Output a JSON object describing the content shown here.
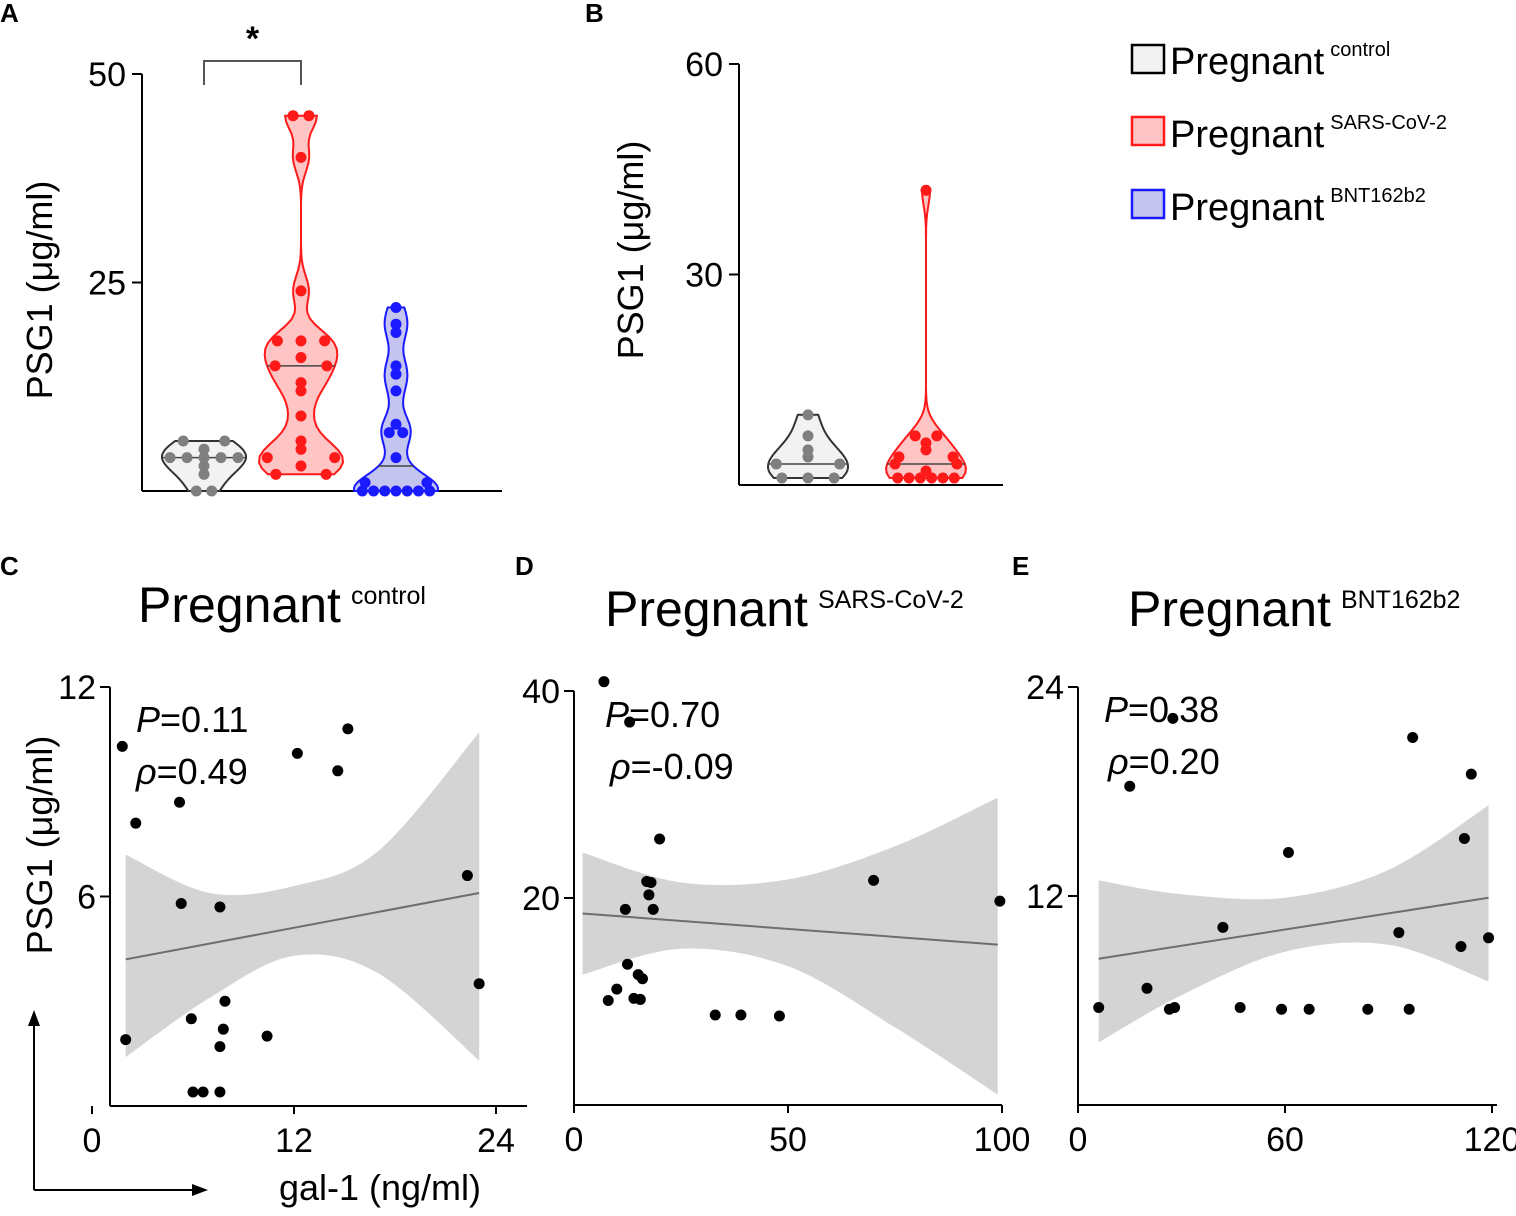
{
  "colors": {
    "control": "#7f7f7f",
    "sars": "#ff1a1a",
    "bnt": "#1a1aff",
    "control_fill": "#f2f2f2",
    "sars_fill": "#ffc4c4",
    "bnt_fill": "#c4c4f0",
    "band": "#d4d4d4",
    "fit": "#6e6e6e",
    "point": "#000000"
  },
  "legend": [
    {
      "key": "control",
      "label": "Pregnant",
      "sup": "control"
    },
    {
      "key": "sars",
      "label": "Pregnant",
      "sup": "SARS-CoV-2"
    },
    {
      "key": "bnt",
      "label": "Pregnant",
      "sup": "BNT162b2"
    }
  ],
  "shared_labels": {
    "psg1_ylabel": "PSG1 (μg/ml)",
    "gal1_xlabel": "gal-1 (ng/ml)"
  },
  "chart_data": [
    {
      "panel": "A",
      "type": "violin",
      "ylabel": "PSG1 (μg/ml)",
      "ylim": [
        0,
        50
      ],
      "yticks": [
        25,
        50
      ],
      "significance": {
        "groups": [
          "control",
          "sars"
        ],
        "label": "*"
      },
      "groups": [
        {
          "key": "control",
          "median": 4,
          "values": [
            0,
            0,
            2,
            3,
            4,
            4,
            4,
            4,
            4,
            5,
            6,
            6
          ]
        },
        {
          "key": "sars",
          "median": 15,
          "values": [
            2,
            2,
            3,
            4,
            4,
            5,
            6,
            9,
            12,
            13,
            15,
            15,
            16,
            18,
            18,
            18,
            24,
            40,
            45,
            45
          ]
        },
        {
          "key": "bnt",
          "median": 3,
          "values": [
            0,
            0,
            0,
            0,
            0,
            0,
            0,
            1,
            1,
            4,
            7,
            7,
            8,
            12,
            14,
            15,
            19,
            20,
            22
          ]
        }
      ]
    },
    {
      "panel": "B",
      "type": "violin",
      "ylabel": "PSG1 (μg/ml)",
      "ylim": [
        0,
        60
      ],
      "yticks": [
        30,
        60
      ],
      "groups": [
        {
          "key": "control",
          "median": 3,
          "values": [
            1,
            1,
            1,
            3,
            3,
            4,
            5,
            7,
            10
          ]
        },
        {
          "key": "sars",
          "median": 3,
          "values": [
            1,
            1,
            1,
            1,
            1,
            1,
            2,
            3,
            3,
            4,
            4,
            5,
            6,
            7,
            7,
            42
          ]
        }
      ]
    },
    {
      "panel": "C",
      "type": "scatter",
      "title": "Pregnant",
      "title_sup": "control",
      "p_label": "P",
      "p_value": "=0.11",
      "rho_label": "ρ",
      "rho_value": "=0.49",
      "ylabel": "PSG1 (μg/ml)",
      "xlabel": "gal-1 (ng/ml)",
      "xlim": [
        0,
        24
      ],
      "ylim": [
        0,
        12
      ],
      "xticks": [
        0,
        12,
        24
      ],
      "yticks": [
        6,
        12
      ],
      "fit": {
        "x": [
          2,
          23
        ],
        "y": [
          4.2,
          6.1
        ]
      },
      "band": {
        "x": [
          2,
          7,
          12,
          17,
          23
        ],
        "upper": [
          7.2,
          6.1,
          6.3,
          7.3,
          10.7
        ],
        "lower": [
          1.4,
          3.1,
          4.3,
          3.8,
          1.3
        ]
      },
      "points": [
        {
          "x": 1.8,
          "y": 10.3
        },
        {
          "x": 2.6,
          "y": 8.1
        },
        {
          "x": 5.2,
          "y": 8.7
        },
        {
          "x": 12.2,
          "y": 10.1
        },
        {
          "x": 14.6,
          "y": 9.6
        },
        {
          "x": 15.2,
          "y": 10.8
        },
        {
          "x": 22.3,
          "y": 6.6
        },
        {
          "x": 5.3,
          "y": 5.8
        },
        {
          "x": 7.6,
          "y": 5.7
        },
        {
          "x": 23.0,
          "y": 3.5
        },
        {
          "x": 7.9,
          "y": 3.0
        },
        {
          "x": 5.9,
          "y": 2.5
        },
        {
          "x": 2.0,
          "y": 1.9
        },
        {
          "x": 7.8,
          "y": 2.2
        },
        {
          "x": 10.4,
          "y": 2.0
        },
        {
          "x": 7.6,
          "y": 1.7
        },
        {
          "x": 6.0,
          "y": 0.4
        },
        {
          "x": 6.6,
          "y": 0.4
        },
        {
          "x": 7.6,
          "y": 0.4
        }
      ]
    },
    {
      "panel": "D",
      "type": "scatter",
      "title": "Pregnant",
      "title_sup": "SARS-CoV-2",
      "p_label": "P",
      "p_value": "=0.70",
      "rho_label": "ρ",
      "rho_value": "=-0.09",
      "ylabel": "",
      "xlabel": "",
      "xlim": [
        0,
        100
      ],
      "ylim": [
        0,
        40
      ],
      "xticks": [
        0,
        50,
        100
      ],
      "yticks": [
        20,
        40
      ],
      "fit": {
        "x": [
          2,
          99
        ],
        "y": [
          18.5,
          15.5
        ]
      },
      "band": {
        "x": [
          2,
          25,
          50,
          75,
          99
        ],
        "upper": [
          24.4,
          21.5,
          21.8,
          25.0,
          29.7
        ],
        "lower": [
          12.6,
          15.1,
          13.4,
          7.5,
          1.0
        ]
      },
      "points": [
        {
          "x": 7.0,
          "y": 40.9
        },
        {
          "x": 13.0,
          "y": 37.0
        },
        {
          "x": 20.0,
          "y": 25.7
        },
        {
          "x": 17.0,
          "y": 21.6
        },
        {
          "x": 18.0,
          "y": 21.5
        },
        {
          "x": 70.0,
          "y": 21.7
        },
        {
          "x": 99.5,
          "y": 19.7
        },
        {
          "x": 17.5,
          "y": 20.3
        },
        {
          "x": 18.5,
          "y": 18.9
        },
        {
          "x": 12.0,
          "y": 18.9
        },
        {
          "x": 12.5,
          "y": 13.6
        },
        {
          "x": 15.0,
          "y": 12.6
        },
        {
          "x": 16.0,
          "y": 12.2
        },
        {
          "x": 10.0,
          "y": 11.2
        },
        {
          "x": 8.0,
          "y": 10.1
        },
        {
          "x": 14.0,
          "y": 10.3
        },
        {
          "x": 15.5,
          "y": 10.2
        },
        {
          "x": 33.0,
          "y": 8.7
        },
        {
          "x": 39.0,
          "y": 8.7
        },
        {
          "x": 48.0,
          "y": 8.6
        }
      ]
    },
    {
      "panel": "E",
      "type": "scatter",
      "title": "Pregnant",
      "title_sup": "BNT162b2",
      "p_label": "P",
      "p_value": "=0.38",
      "rho_label": "ρ",
      "rho_value": "=0.20",
      "ylabel": "",
      "xlabel": "",
      "xlim": [
        0,
        120
      ],
      "ylim": [
        0,
        24
      ],
      "xticks": [
        0,
        60,
        120
      ],
      "yticks": [
        12,
        24
      ],
      "fit": {
        "x": [
          6,
          119
        ],
        "y": [
          8.4,
          11.9
        ]
      },
      "band": {
        "x": [
          6,
          30,
          60,
          90,
          119
        ],
        "upper": [
          12.9,
          12.1,
          11.9,
          13.5,
          17.2
        ],
        "lower": [
          3.6,
          6.3,
          8.8,
          9.2,
          7.1
        ]
      },
      "points": [
        {
          "x": 27.5,
          "y": 22.2
        },
        {
          "x": 97.0,
          "y": 21.1
        },
        {
          "x": 114.0,
          "y": 19.0
        },
        {
          "x": 15.0,
          "y": 18.3
        },
        {
          "x": 112.0,
          "y": 15.3
        },
        {
          "x": 61.0,
          "y": 14.5
        },
        {
          "x": 42.0,
          "y": 10.2
        },
        {
          "x": 93.0,
          "y": 9.9
        },
        {
          "x": 119.0,
          "y": 9.6
        },
        {
          "x": 111.0,
          "y": 9.1
        },
        {
          "x": 20.0,
          "y": 6.7
        },
        {
          "x": 6.0,
          "y": 5.6
        },
        {
          "x": 26.5,
          "y": 5.5
        },
        {
          "x": 28.0,
          "y": 5.6
        },
        {
          "x": 47.0,
          "y": 5.6
        },
        {
          "x": 59.0,
          "y": 5.5
        },
        {
          "x": 67.0,
          "y": 5.5
        },
        {
          "x": 84.0,
          "y": 5.5
        },
        {
          "x": 96.0,
          "y": 5.5
        }
      ]
    }
  ]
}
